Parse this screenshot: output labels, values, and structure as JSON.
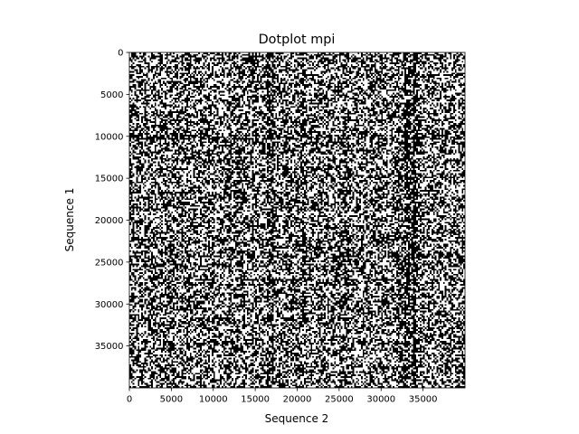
{
  "chart_data": {
    "type": "heatmap",
    "title": "Dotplot mpi",
    "xlabel": "Sequence 2",
    "ylabel": "Sequence 1",
    "xlim": [
      0,
      40000
    ],
    "ylim": [
      40000,
      0
    ],
    "y_axis_inverted": true,
    "xticks": [
      {
        "value": 0,
        "label": "0"
      },
      {
        "value": 5000,
        "label": "5000"
      },
      {
        "value": 10000,
        "label": "10000"
      },
      {
        "value": 15000,
        "label": "15000"
      },
      {
        "value": 20000,
        "label": "20000"
      },
      {
        "value": 25000,
        "label": "25000"
      },
      {
        "value": 30000,
        "label": "30000"
      },
      {
        "value": 35000,
        "label": "35000"
      }
    ],
    "yticks": [
      {
        "value": 0,
        "label": "0"
      },
      {
        "value": 5000,
        "label": "5000"
      },
      {
        "value": 10000,
        "label": "10000"
      },
      {
        "value": 15000,
        "label": "15000"
      },
      {
        "value": 20000,
        "label": "20000"
      },
      {
        "value": 25000,
        "label": "25000"
      },
      {
        "value": 30000,
        "label": "30000"
      },
      {
        "value": 35000,
        "label": "35000"
      }
    ],
    "colors": {
      "match": "#000000",
      "background": "#ffffff",
      "axes": "#000000"
    },
    "grid": false,
    "legend": "none"
  }
}
